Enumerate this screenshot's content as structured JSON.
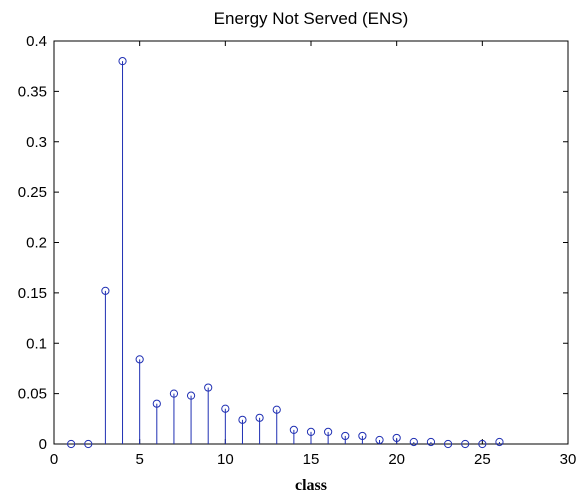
{
  "chart_data": {
    "type": "stem",
    "title": "Energy Not Served (ENS)",
    "xlabel": "class",
    "ylabel": "",
    "xlim": [
      0,
      30
    ],
    "ylim": [
      0,
      0.4
    ],
    "xticks": [
      0,
      5,
      10,
      15,
      20,
      25,
      30
    ],
    "xtick_labels": [
      "0",
      "5",
      "10",
      "15",
      "20",
      "25",
      "30"
    ],
    "yticks": [
      0,
      0.05,
      0.1,
      0.15,
      0.2,
      0.25,
      0.3,
      0.35,
      0.4
    ],
    "ytick_labels": [
      "0",
      "0.05",
      "0.1",
      "0.15",
      "0.2",
      "0.25",
      "0.3",
      "0.35",
      "0.4"
    ],
    "grid": false,
    "color": "#1f2fb3",
    "x": [
      1,
      2,
      3,
      4,
      5,
      6,
      7,
      8,
      9,
      10,
      11,
      12,
      13,
      14,
      15,
      16,
      17,
      18,
      19,
      20,
      21,
      22,
      23,
      24,
      25,
      26
    ],
    "values": [
      0.0,
      0.0,
      0.152,
      0.38,
      0.084,
      0.04,
      0.05,
      0.048,
      0.056,
      0.035,
      0.024,
      0.026,
      0.034,
      0.014,
      0.012,
      0.012,
      0.008,
      0.008,
      0.004,
      0.006,
      0.002,
      0.002,
      0.0,
      0.0,
      0.0,
      0.002
    ]
  }
}
